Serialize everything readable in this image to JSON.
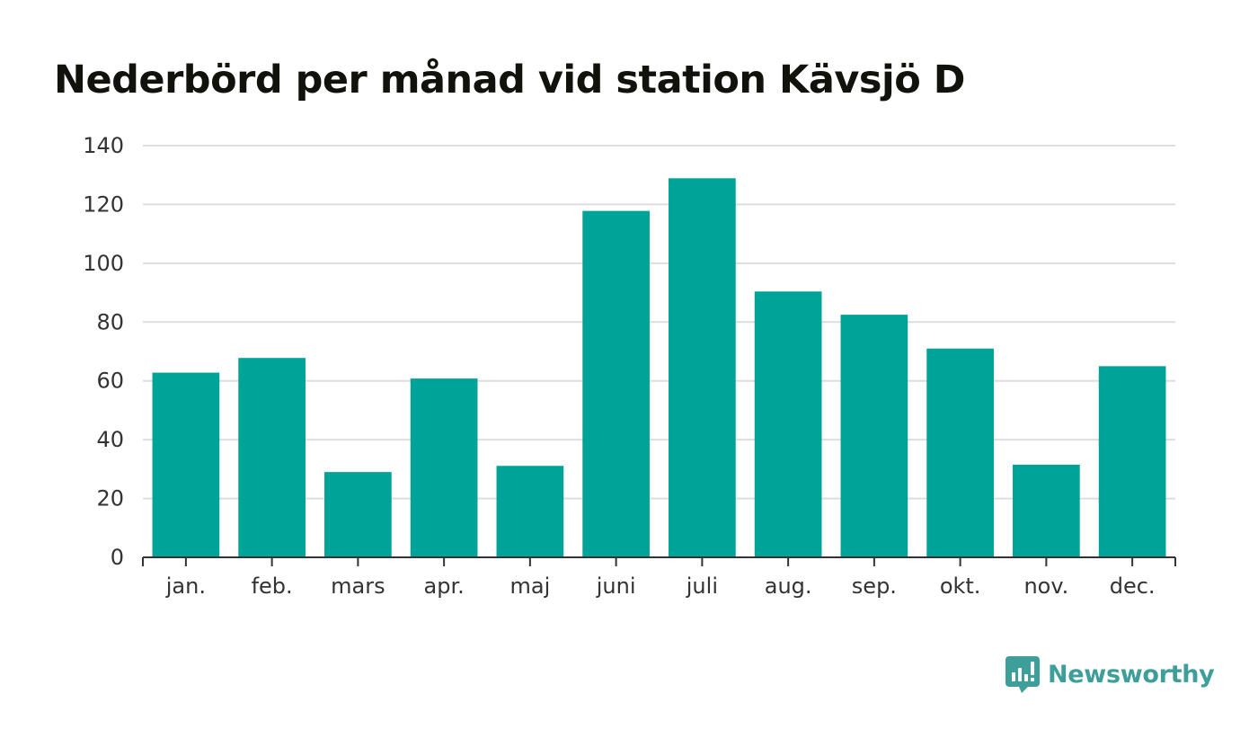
{
  "chart_data": {
    "type": "bar",
    "title": "Nederbörd per månad vid station Kävsjö D",
    "xlabel": "",
    "ylabel": "",
    "categories": [
      "jan.",
      "feb.",
      "mars",
      "apr.",
      "maj",
      "juni",
      "juli",
      "aug.",
      "sep.",
      "okt.",
      "nov.",
      "dec."
    ],
    "values": [
      62.8,
      67.8,
      29.0,
      60.8,
      31.1,
      117.8,
      128.9,
      90.4,
      82.5,
      71.0,
      31.5,
      65.0
    ],
    "ylim": [
      0,
      140
    ],
    "yticks": [
      0,
      20,
      40,
      60,
      80,
      100,
      120,
      140
    ],
    "grid": true,
    "legend": "none",
    "colors": {
      "bar": "#00a397",
      "grid": "#dddddd",
      "axis": "#333333"
    }
  },
  "brand": {
    "name": "Newsworthy",
    "icon": "newsworthy-logo-icon",
    "color": "#3e9e99"
  }
}
